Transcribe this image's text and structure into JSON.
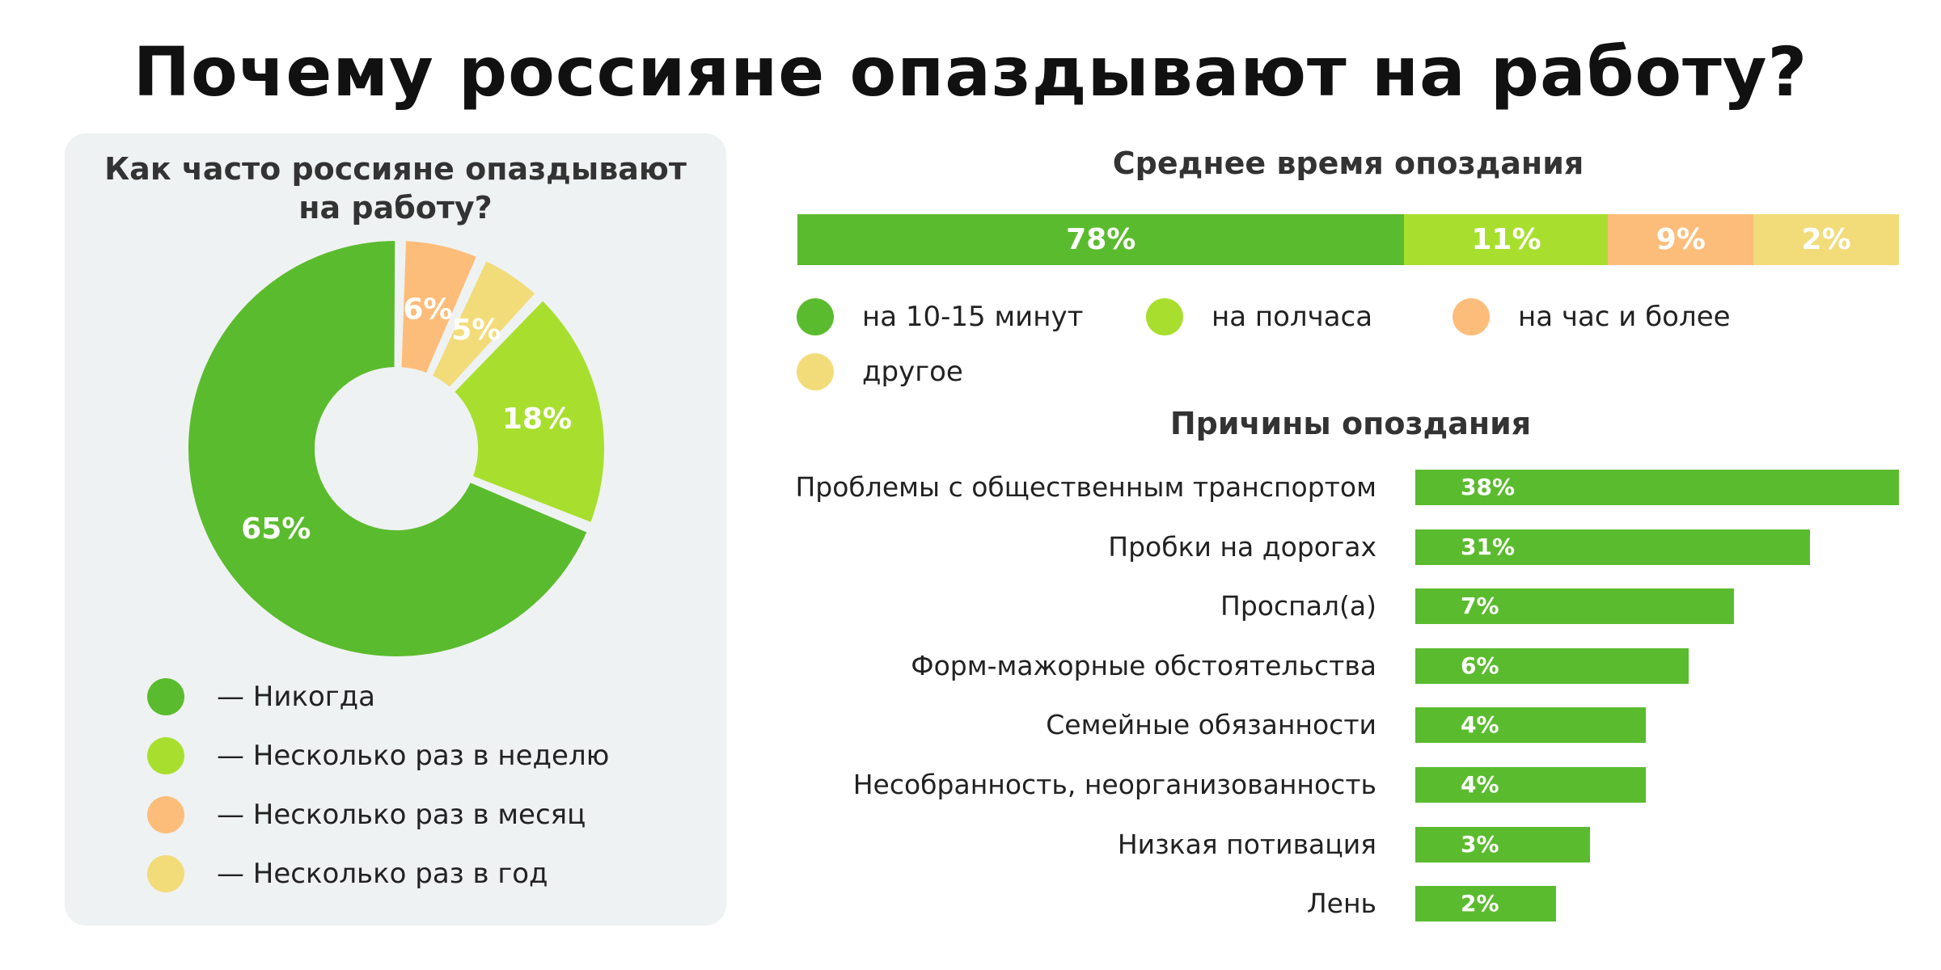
{
  "title": "Почему россияне опаздывают на работу?",
  "colors": {
    "green": "#5bbb2e",
    "light_green": "#a8df2e",
    "orange": "#fdbd7a",
    "yellow": "#f2dc7a",
    "panel_bg": "#eff2f2"
  },
  "chart_data": [
    {
      "type": "pie",
      "title": "Как часто россияне опаздывают на работу?",
      "title_lines": [
        "Как часто россияне опаздывают",
        "на работу?"
      ],
      "slices": [
        {
          "label": "65%",
          "value": 65,
          "color": "#5bbb2e"
        },
        {
          "label": "18%",
          "value": 18,
          "color": "#a8df2e"
        },
        {
          "label": "6%",
          "value": 6,
          "color": "#fdbd7a"
        },
        {
          "label": "5%",
          "value": 5,
          "color": "#f2dc7a"
        }
      ],
      "legend": [
        {
          "text": "— Никогда",
          "color": "#5bbb2e"
        },
        {
          "text": "— Несколько раз в неделю",
          "color": "#a8df2e"
        },
        {
          "text": "— Несколько раз в месяц",
          "color": "#fdbd7a"
        },
        {
          "text": "— Несколько раз в год",
          "color": "#f2dc7a"
        }
      ]
    },
    {
      "type": "bar",
      "orientation": "stacked-horizontal",
      "title": "Среднее время опоздания",
      "series": [
        {
          "name": "на 10-15 минут",
          "value": 78,
          "label": "78%",
          "color": "#5bbb2e"
        },
        {
          "name": "на полчаса",
          "value": 11,
          "label": "11%",
          "color": "#a8df2e"
        },
        {
          "name": "на час и более",
          "value": 9,
          "label": "9%",
          "color": "#fdbd7a"
        },
        {
          "name": "другое",
          "value": 2,
          "label": "2%",
          "color": "#f2dc7a"
        }
      ]
    },
    {
      "type": "bar",
      "orientation": "horizontal",
      "title": "Причины опоздания",
      "categories": [
        "Проблемы с общественным транспортом",
        "Пробки на дорогах",
        "Проспал(а)",
        "Форм-мажорные обстоятельства",
        "Семейные обязанности",
        "Несобранность, неорганизованность",
        "Низкая потивация",
        "Лень"
      ],
      "values": [
        38,
        31,
        7,
        6,
        4,
        4,
        3,
        2
      ],
      "value_labels": [
        "38%",
        "31%",
        "7%",
        "6%",
        "4%",
        "4%",
        "3%",
        "2%"
      ],
      "color": "#5bbb2e"
    }
  ]
}
